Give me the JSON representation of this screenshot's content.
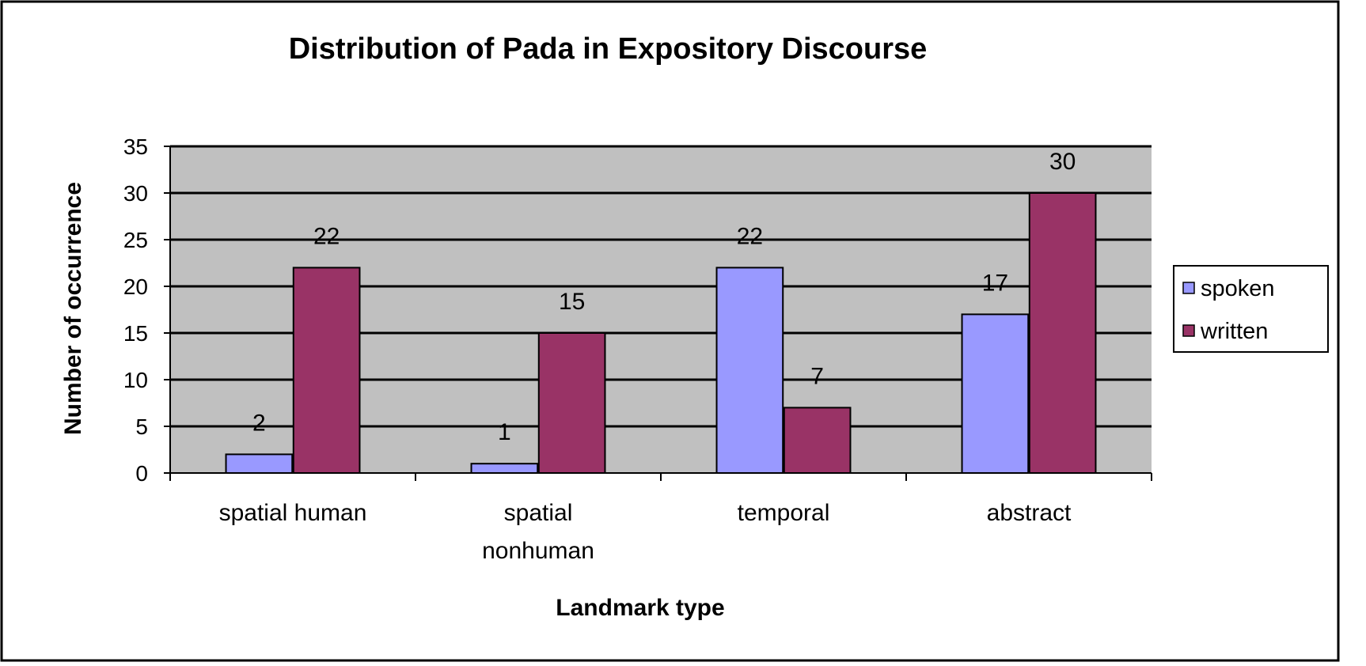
{
  "chart_data": {
    "type": "bar",
    "title": "Distribution of Pada in Expository Discourse",
    "xlabel": "Landmark type",
    "ylabel": "Number of occurrence",
    "categories": [
      [
        "spatial human"
      ],
      [
        "spatial",
        "nonhuman"
      ],
      [
        "temporal"
      ],
      [
        "abstract"
      ]
    ],
    "series": [
      {
        "name": "spoken",
        "values": [
          2,
          1,
          22,
          17
        ],
        "color": "#9999ff"
      },
      {
        "name": "written",
        "values": [
          22,
          15,
          7,
          30
        ],
        "color": "#993366"
      }
    ],
    "ylim": [
      0,
      35
    ],
    "yticks": [
      0,
      5,
      10,
      15,
      20,
      25,
      30,
      35
    ],
    "grid": true,
    "plot_background": "#c0c0c0",
    "legend_position": "right",
    "data_labels": true
  }
}
